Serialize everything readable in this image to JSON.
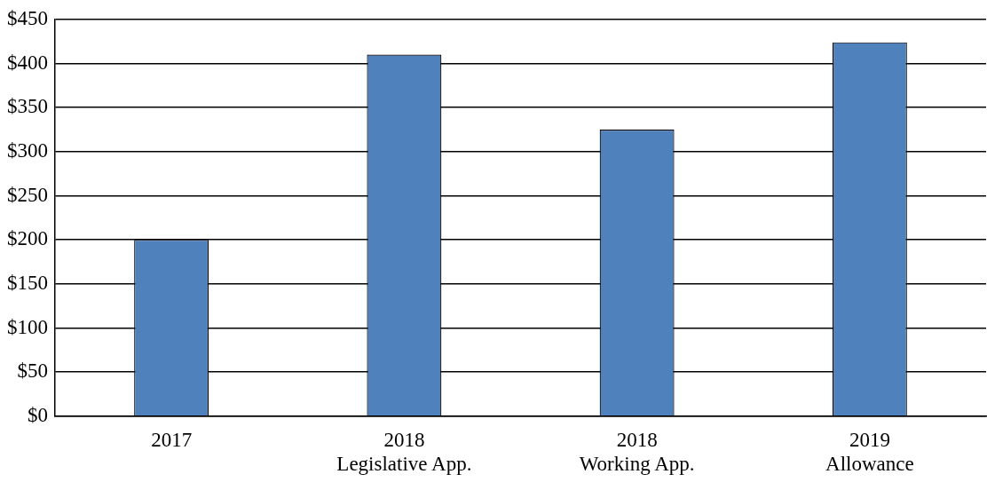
{
  "chart_data": {
    "type": "bar",
    "categories": [
      "2017",
      "2018\nLegislative App.",
      "2018\nWorking App.",
      "2019\nAllowance"
    ],
    "values": [
      200,
      410,
      325,
      424
    ],
    "color": "#4f81bd",
    "ylim": [
      0,
      450
    ],
    "yticks": [
      {
        "value": 0,
        "label": "$0"
      },
      {
        "value": 50,
        "label": "$50"
      },
      {
        "value": 100,
        "label": "$100"
      },
      {
        "value": 150,
        "label": "$150"
      },
      {
        "value": 200,
        "label": "$200"
      },
      {
        "value": 250,
        "label": "$250"
      },
      {
        "value": 300,
        "label": "$300"
      },
      {
        "value": 350,
        "label": "$350"
      },
      {
        "value": 400,
        "label": "$400"
      },
      {
        "value": 450,
        "label": "$450"
      }
    ],
    "grid": "y",
    "legend": false
  }
}
